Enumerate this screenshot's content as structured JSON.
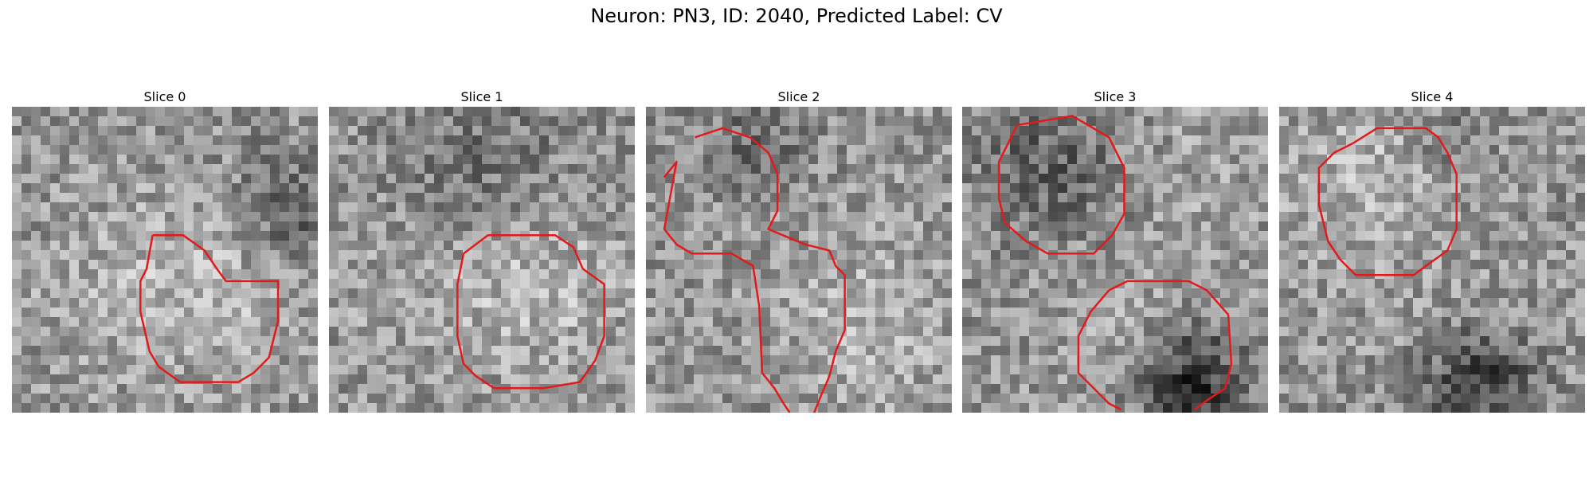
{
  "title": "Neuron: PN3, ID: 2040, Predicted Label: CV",
  "contour_color": "#e31a1c",
  "colormap": "grayscale",
  "panels": [
    {
      "label": "Slice 0",
      "seed": 11,
      "bright": [
        [
          0.67,
          0.57,
          0.3,
          0.14
        ],
        [
          0.3,
          0.62,
          0.3,
          0.06
        ]
      ],
      "dark": [
        [
          0.9,
          0.35,
          0.2,
          0.1
        ]
      ],
      "contours": [
        [
          [
            0.46,
            0.42
          ],
          [
            0.56,
            0.42
          ],
          [
            0.63,
            0.47
          ],
          [
            0.67,
            0.53
          ],
          [
            0.7,
            0.57
          ],
          [
            0.87,
            0.57
          ],
          [
            0.87,
            0.7
          ],
          [
            0.84,
            0.82
          ],
          [
            0.79,
            0.87
          ],
          [
            0.74,
            0.9
          ],
          [
            0.55,
            0.9
          ],
          [
            0.48,
            0.85
          ],
          [
            0.45,
            0.8
          ],
          [
            0.42,
            0.67
          ],
          [
            0.42,
            0.57
          ],
          [
            0.44,
            0.53
          ],
          [
            0.46,
            0.42
          ]
        ]
      ]
    },
    {
      "label": "Slice 1",
      "seed": 23,
      "bright": [
        [
          0.67,
          0.57,
          0.3,
          0.15
        ],
        [
          0.25,
          0.55,
          0.3,
          0.05
        ]
      ],
      "dark": [
        [
          0.5,
          0.2,
          0.3,
          0.07
        ]
      ],
      "contours": [
        [
          [
            0.44,
            0.48
          ],
          [
            0.52,
            0.42
          ],
          [
            0.74,
            0.42
          ],
          [
            0.8,
            0.46
          ],
          [
            0.83,
            0.53
          ],
          [
            0.9,
            0.58
          ],
          [
            0.9,
            0.75
          ],
          [
            0.87,
            0.83
          ],
          [
            0.82,
            0.9
          ],
          [
            0.7,
            0.92
          ],
          [
            0.54,
            0.92
          ],
          [
            0.48,
            0.88
          ],
          [
            0.44,
            0.84
          ],
          [
            0.42,
            0.75
          ],
          [
            0.42,
            0.58
          ],
          [
            0.44,
            0.48
          ]
        ]
      ]
    },
    {
      "label": "Slice 2",
      "seed": 37,
      "bright": [
        [
          0.72,
          0.7,
          0.28,
          0.13
        ],
        [
          0.3,
          0.3,
          0.22,
          0.05
        ]
      ],
      "dark": [
        [
          0.35,
          0.15,
          0.2,
          0.08
        ]
      ],
      "contours": [
        [
          [
            0.16,
            0.1
          ],
          [
            0.25,
            0.07
          ],
          [
            0.34,
            0.1
          ],
          [
            0.4,
            0.15
          ],
          [
            0.43,
            0.22
          ],
          [
            0.43,
            0.34
          ],
          [
            0.4,
            0.4
          ],
          [
            0.52,
            0.45
          ],
          [
            0.6,
            0.47
          ],
          [
            0.62,
            0.52
          ],
          [
            0.65,
            0.55
          ],
          [
            0.65,
            0.73
          ],
          [
            0.62,
            0.8
          ],
          [
            0.6,
            0.88
          ],
          [
            0.57,
            0.95
          ],
          [
            0.55,
            1.0
          ]
        ],
        [
          [
            0.06,
            0.23
          ],
          [
            0.1,
            0.18
          ],
          [
            0.06,
            0.4
          ],
          [
            0.1,
            0.45
          ],
          [
            0.15,
            0.48
          ],
          [
            0.28,
            0.48
          ],
          [
            0.35,
            0.52
          ],
          [
            0.37,
            0.65
          ],
          [
            0.38,
            0.87
          ],
          [
            0.42,
            0.92
          ],
          [
            0.45,
            0.97
          ],
          [
            0.47,
            1.0
          ]
        ]
      ]
    },
    {
      "label": "Slice 3",
      "seed": 51,
      "bright": [
        [
          0.55,
          0.75,
          0.25,
          0.08
        ],
        [
          0.8,
          0.2,
          0.25,
          0.05
        ]
      ],
      "dark": [
        [
          0.74,
          0.9,
          0.18,
          0.2
        ],
        [
          0.28,
          0.2,
          0.22,
          0.1
        ]
      ],
      "contours": [
        [
          [
            0.18,
            0.06
          ],
          [
            0.36,
            0.03
          ],
          [
            0.48,
            0.1
          ],
          [
            0.53,
            0.2
          ],
          [
            0.53,
            0.35
          ],
          [
            0.49,
            0.42
          ],
          [
            0.43,
            0.48
          ],
          [
            0.28,
            0.48
          ],
          [
            0.21,
            0.44
          ],
          [
            0.14,
            0.38
          ],
          [
            0.12,
            0.3
          ],
          [
            0.12,
            0.18
          ],
          [
            0.18,
            0.06
          ]
        ],
        [
          [
            0.48,
            0.6
          ],
          [
            0.54,
            0.57
          ],
          [
            0.74,
            0.57
          ],
          [
            0.8,
            0.6
          ],
          [
            0.87,
            0.68
          ],
          [
            0.88,
            0.84
          ],
          [
            0.86,
            0.92
          ],
          [
            0.8,
            0.96
          ],
          [
            0.76,
            0.99
          ]
        ],
        [
          [
            0.48,
            0.6
          ],
          [
            0.42,
            0.67
          ],
          [
            0.38,
            0.75
          ],
          [
            0.38,
            0.87
          ],
          [
            0.43,
            0.92
          ],
          [
            0.48,
            0.97
          ],
          [
            0.52,
            0.99
          ]
        ]
      ]
    },
    {
      "label": "Slice 4",
      "seed": 67,
      "bright": [
        [
          0.28,
          0.25,
          0.28,
          0.13
        ],
        [
          0.6,
          0.75,
          0.3,
          0.04
        ]
      ],
      "dark": [
        [
          0.65,
          0.9,
          0.18,
          0.18
        ],
        [
          0.55,
          0.12,
          0.12,
          0.06
        ]
      ],
      "contours": [
        [
          [
            0.24,
            0.12
          ],
          [
            0.32,
            0.07
          ],
          [
            0.48,
            0.07
          ],
          [
            0.52,
            0.1
          ],
          [
            0.55,
            0.15
          ],
          [
            0.58,
            0.22
          ],
          [
            0.58,
            0.4
          ],
          [
            0.55,
            0.47
          ],
          [
            0.48,
            0.52
          ],
          [
            0.44,
            0.55
          ],
          [
            0.25,
            0.55
          ],
          [
            0.2,
            0.5
          ],
          [
            0.16,
            0.44
          ],
          [
            0.13,
            0.32
          ],
          [
            0.13,
            0.2
          ],
          [
            0.18,
            0.15
          ],
          [
            0.24,
            0.12
          ]
        ]
      ]
    }
  ]
}
